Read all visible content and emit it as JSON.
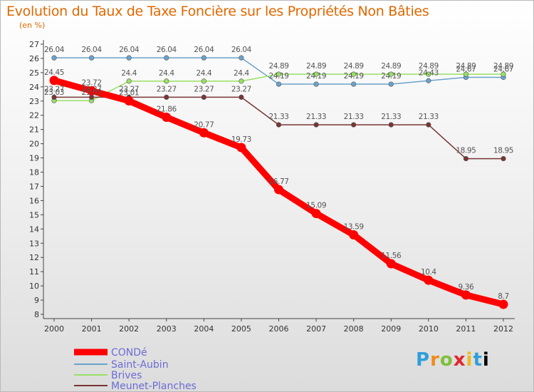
{
  "header": {
    "title": "Evolution du Taux de Taxe Foncière sur les Propriétés Non Bâties",
    "subtitle": "(en %)"
  },
  "logo": {
    "letters": [
      "P",
      "r",
      "o",
      "x",
      "i",
      "t",
      "i"
    ]
  },
  "chart_data": {
    "type": "line",
    "title": "Evolution du Taux de Taxe Foncière sur les Propriétés Non Bâties",
    "ylabel": "(en %)",
    "xlabel": "",
    "x": [
      "2000",
      "2001",
      "2002",
      "2003",
      "2004",
      "2005",
      "2006",
      "2007",
      "2008",
      "2009",
      "2010",
      "2011",
      "2012"
    ],
    "ylim": [
      8,
      27
    ],
    "yticks": [
      8,
      9,
      10,
      11,
      12,
      13,
      14,
      15,
      16,
      17,
      18,
      19,
      20,
      21,
      22,
      23,
      24,
      25,
      26,
      27
    ],
    "grid": false,
    "legend": "bottom-left",
    "series": [
      {
        "name": "CONDé",
        "color": "#ff0000",
        "labels": [
          "24.45",
          "23.72",
          "23.01",
          "21.86",
          "20.77",
          "19.73",
          "16.77",
          "15.09",
          "13.59",
          "11.56",
          "10.4",
          "9.36",
          "8.7"
        ],
        "values": [
          24.45,
          23.72,
          23.01,
          21.86,
          20.77,
          19.73,
          16.77,
          15.09,
          13.59,
          11.56,
          10.4,
          9.36,
          8.7
        ]
      },
      {
        "name": "Saint-Aubin",
        "color": "#6aa3cc",
        "labels": [
          "26.04",
          "26.04",
          "26.04",
          "26.04",
          "26.04",
          "26.04",
          "24.19",
          "24.19",
          "24.19",
          "24.19",
          "24.43",
          "24.67",
          "24.67"
        ],
        "values": [
          26.04,
          26.04,
          26.04,
          26.04,
          26.04,
          26.04,
          24.19,
          24.19,
          24.19,
          24.19,
          24.43,
          24.67,
          24.67
        ]
      },
      {
        "name": "Brives",
        "color": "#99e066",
        "labels": [
          "23.03",
          "23.03",
          "24.4",
          "24.4",
          "24.4",
          "24.4",
          "24.89",
          "24.89",
          "24.89",
          "24.89",
          "24.89",
          "24.89",
          "24.89"
        ],
        "values": [
          23.03,
          23.03,
          24.4,
          24.4,
          24.4,
          24.4,
          24.89,
          24.89,
          24.89,
          24.89,
          24.89,
          24.89,
          24.89
        ]
      },
      {
        "name": "Meunet-Planches",
        "color": "#7a3535",
        "labels": [
          "23.27",
          "23.27",
          "23.27",
          "23.27",
          "23.27",
          "23.27",
          "21.33",
          "21.33",
          "21.33",
          "21.33",
          "21.33",
          "18.95",
          "18.95"
        ],
        "values": [
          23.27,
          23.27,
          23.27,
          23.27,
          23.27,
          23.27,
          21.33,
          21.33,
          21.33,
          21.33,
          21.33,
          18.95,
          18.95
        ]
      }
    ]
  }
}
